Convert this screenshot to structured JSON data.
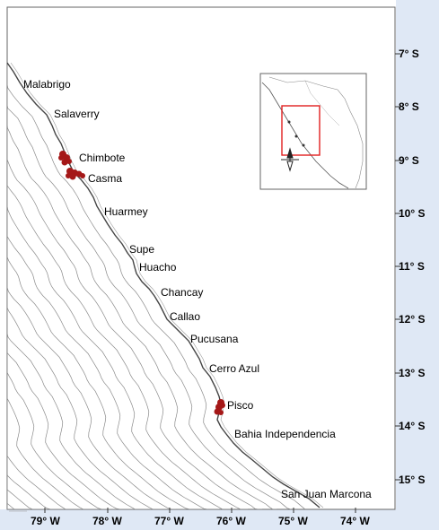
{
  "map": {
    "ports": [
      {
        "name": "Malabrigo",
        "lat": -7.7
      },
      {
        "name": "Salaverry",
        "lat": -8.2
      },
      {
        "name": "Chimbote",
        "lat": -9.07
      },
      {
        "name": "Casma",
        "lat": -9.45
      },
      {
        "name": "Huarmey",
        "lat": -10.07
      },
      {
        "name": "Supe",
        "lat": -10.8
      },
      {
        "name": "Huacho",
        "lat": -11.1
      },
      {
        "name": "Chancay",
        "lat": -11.57
      },
      {
        "name": "Callao",
        "lat": -12.05
      },
      {
        "name": "Pucusana",
        "lat": -12.48
      },
      {
        "name": "Cerro Azul",
        "lat": -13.02
      },
      {
        "name": "Pisco",
        "lat": -13.7
      },
      {
        "name": "Bahia Independencia",
        "lat": -14.2
      },
      {
        "name": "San Juan Marcona",
        "lat": -15.35
      }
    ],
    "lat_ticks": [
      {
        "label": "7° S",
        "value": -7
      },
      {
        "label": "8° S",
        "value": -8
      },
      {
        "label": "9° S",
        "value": -9
      },
      {
        "label": "10° S",
        "value": -10
      },
      {
        "label": "11° S",
        "value": -11
      },
      {
        "label": "12° S",
        "value": -12
      },
      {
        "label": "13° S",
        "value": -13
      },
      {
        "label": "14° S",
        "value": -14
      },
      {
        "label": "15° S",
        "value": -15
      }
    ],
    "lon_ticks": [
      {
        "label": "79° W",
        "value": -79
      },
      {
        "label": "78° W",
        "value": -78
      },
      {
        "label": "77° W",
        "value": -77
      },
      {
        "label": "76° W",
        "value": -76
      },
      {
        "label": "75° W",
        "value": -75
      },
      {
        "label": "74° W",
        "value": -74
      }
    ],
    "colors": {
      "coast": "#444444",
      "isolines": "#8a8a8a",
      "clusters": "#a51818",
      "inset_box": "#e02020",
      "frame": "#666666",
      "axis_band": "#dfe8f5"
    }
  }
}
